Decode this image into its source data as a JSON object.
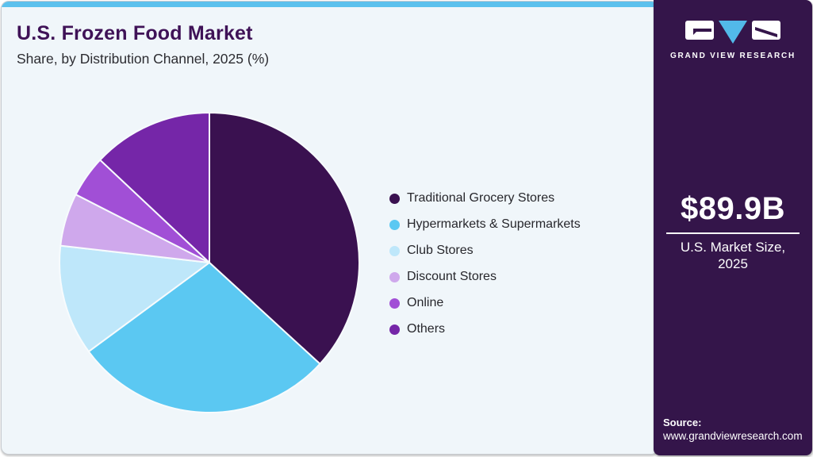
{
  "header": {
    "title": "U.S. Frozen Food Market",
    "subtitle": "Share, by Distribution Channel, 2025 (%)"
  },
  "chart_data": {
    "type": "pie",
    "title": "U.S. Frozen Food Market Share, by Distribution Channel, 2025 (%)",
    "start_angle_deg": 0,
    "direction": "clockwise",
    "legend_position": "right",
    "slices": [
      {
        "label": "Traditional Grocery Stores",
        "value_pct": 36.8,
        "color": "#3A1150"
      },
      {
        "label": "Hypermarkets & Supermarkets",
        "value_pct": 28.1,
        "color": "#5BC8F2"
      },
      {
        "label": "Club Stores",
        "value_pct": 11.9,
        "color": "#BEE7FA"
      },
      {
        "label": "Discount Stores",
        "value_pct": 5.7,
        "color": "#CFA8EC"
      },
      {
        "label": "Online",
        "value_pct": 4.5,
        "color": "#A14FD6"
      },
      {
        "label": "Others",
        "value_pct": 13.0,
        "color": "#7526A8"
      }
    ]
  },
  "sidebar": {
    "brand": {
      "name": "GRAND VIEW RESEARCH"
    },
    "market_size": {
      "value": "$89.9B",
      "label_line1": "U.S. Market Size,",
      "label_line2": "2025"
    },
    "source": {
      "label": "Source:",
      "url": "www.grandviewresearch.com"
    }
  },
  "theme": {
    "top_bar": "#5CC1ED",
    "main_background": "#F0F6FA",
    "title_color": "#3F1257",
    "sidebar_background": "#34154A",
    "logo_triangle_blue": "#52B9E9",
    "border_gray": "#C7CBD0"
  }
}
